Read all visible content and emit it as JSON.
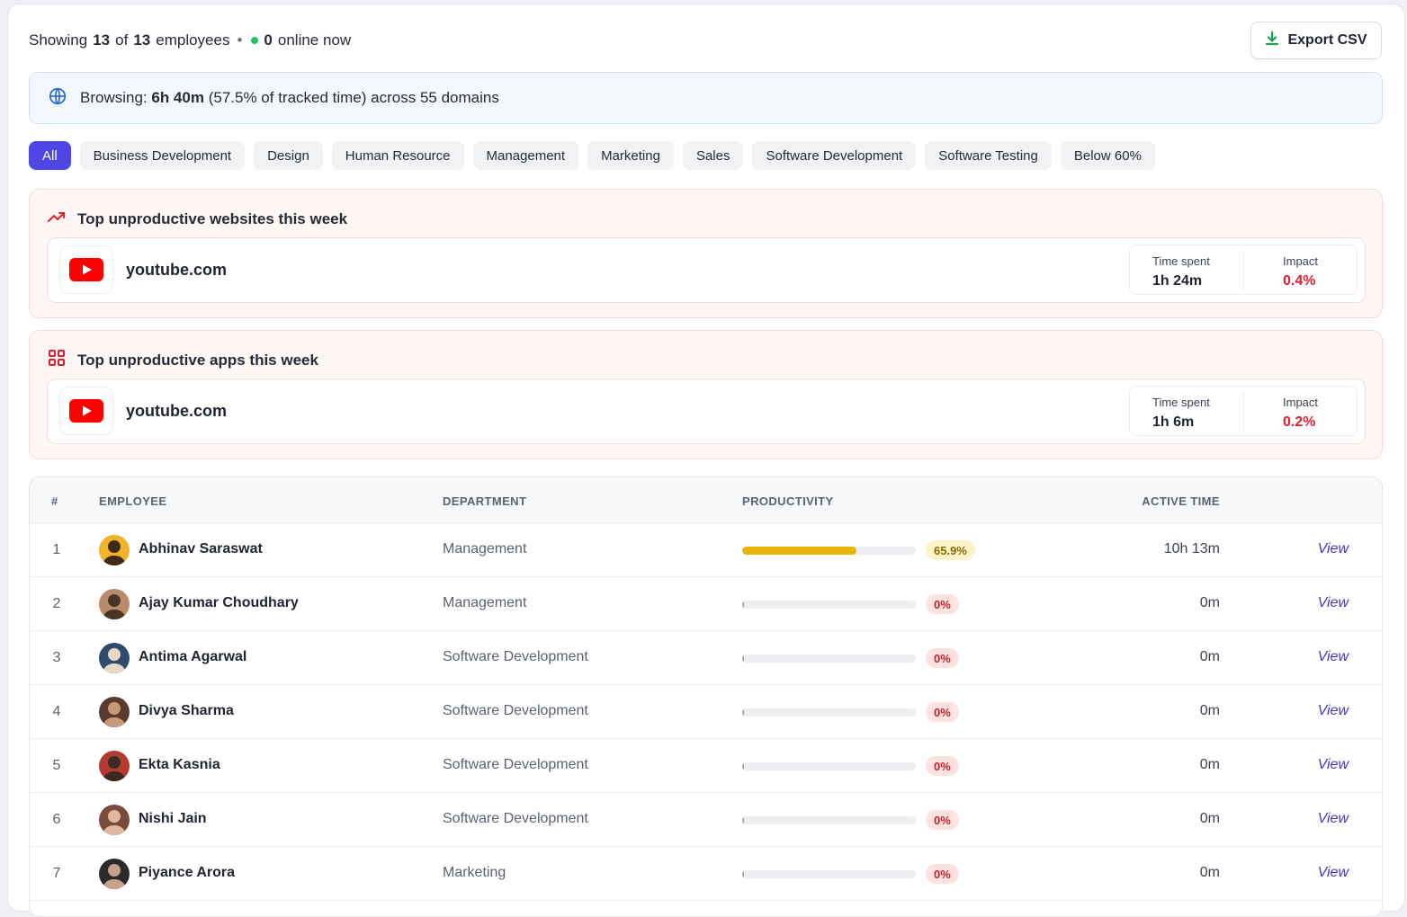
{
  "header": {
    "showing_prefix": "Showing",
    "shown_count": "13",
    "of_word": "of",
    "total_count": "13",
    "employees_word": "employees",
    "separator": "•",
    "online_count": "0",
    "online_suffix": "online now",
    "export_label": "Export CSV"
  },
  "browsing": {
    "label": "Browsing:",
    "time": "6h 40m",
    "detail": "(57.5% of tracked time) across 55 domains"
  },
  "filters": [
    {
      "label": "All",
      "active": true
    },
    {
      "label": "Business Development"
    },
    {
      "label": "Design"
    },
    {
      "label": "Human Resource"
    },
    {
      "label": "Management"
    },
    {
      "label": "Marketing"
    },
    {
      "label": "Sales"
    },
    {
      "label": "Software Development"
    },
    {
      "label": "Software Testing"
    },
    {
      "label": "Below 60%"
    }
  ],
  "websites": {
    "title": "Top unproductive websites this week",
    "site": "youtube.com",
    "time_label": "Time spent",
    "time_value": "1h 24m",
    "impact_label": "Impact",
    "impact_value": "0.4%"
  },
  "apps": {
    "title": "Top unproductive apps this week",
    "site": "youtube.com",
    "time_label": "Time spent",
    "time_value": "1h 6m",
    "impact_label": "Impact",
    "impact_value": "0.2%"
  },
  "table": {
    "headers": {
      "num": "#",
      "employee": "EMPLOYEE",
      "department": "DEPARTMENT",
      "productivity": "PRODUCTIVITY",
      "active_time": "ACTIVE TIME"
    },
    "rows": [
      {
        "num": "1",
        "name": "Abhinav Saraswat",
        "department": "Management",
        "productivity_pct": 65.9,
        "productivity": "65.9%",
        "active_time": "10h 13m",
        "action": "View"
      },
      {
        "num": "2",
        "name": "Ajay Kumar Choudhary",
        "department": "Management",
        "productivity_pct": 0,
        "productivity": "0%",
        "active_time": "0m",
        "action": "View"
      },
      {
        "num": "3",
        "name": "Antima Agarwal",
        "department": "Software Development",
        "productivity_pct": 0,
        "productivity": "0%",
        "active_time": "0m",
        "action": "View"
      },
      {
        "num": "4",
        "name": "Divya Sharma",
        "department": "Software Development",
        "productivity_pct": 0,
        "productivity": "0%",
        "active_time": "0m",
        "action": "View"
      },
      {
        "num": "5",
        "name": "Ekta Kasnia",
        "department": "Software Development",
        "productivity_pct": 0,
        "productivity": "0%",
        "active_time": "0m",
        "action": "View"
      },
      {
        "num": "6",
        "name": "Nishi Jain",
        "department": "Software Development",
        "productivity_pct": 0,
        "productivity": "0%",
        "active_time": "0m",
        "action": "View"
      },
      {
        "num": "7",
        "name": "Piyance Arora",
        "department": "Marketing",
        "productivity_pct": 0,
        "productivity": "0%",
        "active_time": "0m",
        "action": "View"
      }
    ]
  },
  "colors": {
    "accent": "#4f46e5",
    "good_bar": "#eab308",
    "bad_bar": "#9ca3af",
    "impact": "#e11d2e",
    "online": "#22c55e"
  }
}
